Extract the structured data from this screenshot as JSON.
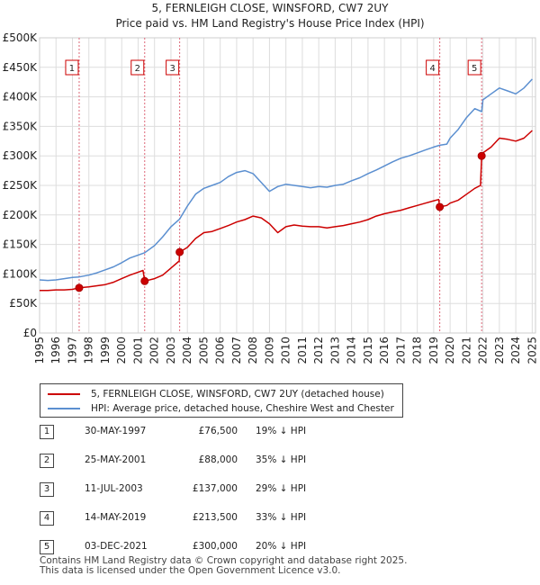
{
  "title_line1": "5, FERNLEIGH CLOSE, WINSFORD, CW7 2UY",
  "title_line2": "Price paid vs. HM Land Registry's House Price Index (HPI)",
  "legend": [
    {
      "label": "5, FERNLEIGH CLOSE, WINSFORD, CW7 2UY (detached house)",
      "color": "#cc0000"
    },
    {
      "label": "HPI: Average price, detached house, Cheshire West and Chester",
      "color": "#5b8fd0"
    }
  ],
  "sales": [
    {
      "num": "1",
      "date": "30-MAY-1997",
      "price": "£76,500",
      "pct": "19% ↓ HPI"
    },
    {
      "num": "2",
      "date": "25-MAY-2001",
      "price": "£88,000",
      "pct": "35% ↓ HPI"
    },
    {
      "num": "3",
      "date": "11-JUL-2003",
      "price": "£137,000",
      "pct": "29% ↓ HPI"
    },
    {
      "num": "4",
      "date": "14-MAY-2019",
      "price": "£213,500",
      "pct": "33% ↓ HPI"
    },
    {
      "num": "5",
      "date": "03-DEC-2021",
      "price": "£300,000",
      "pct": "20% ↓ HPI"
    }
  ],
  "footer_line1": "Contains HM Land Registry data © Crown copyright and database right 2025.",
  "footer_line2": "This data is licensed under the Open Government Licence v3.0.",
  "chart_data": {
    "type": "line",
    "title": "5, FERNLEIGH CLOSE, WINSFORD, CW7 2UY",
    "subtitle": "Price paid vs. HM Land Registry's House Price Index (HPI)",
    "xlabel": "",
    "ylabel": "",
    "xlim": [
      1995,
      2025.2
    ],
    "ylim": [
      0,
      500000
    ],
    "y_ticks": [
      0,
      50000,
      100000,
      150000,
      200000,
      250000,
      300000,
      350000,
      400000,
      450000,
      500000
    ],
    "y_tick_labels": [
      "£0",
      "£50K",
      "£100K",
      "£150K",
      "£200K",
      "£250K",
      "£300K",
      "£350K",
      "£400K",
      "£450K",
      "£500K"
    ],
    "x_ticks": [
      1995,
      1996,
      1997,
      1998,
      1999,
      2000,
      2001,
      2002,
      2003,
      2004,
      2005,
      2006,
      2007,
      2008,
      2009,
      2010,
      2011,
      2012,
      2013,
      2014,
      2015,
      2016,
      2017,
      2018,
      2019,
      2020,
      2021,
      2022,
      2023,
      2024,
      2025
    ],
    "grid": true,
    "sale_markers": [
      {
        "label": "1",
        "x": 1997.41,
        "y": 76500
      },
      {
        "label": "2",
        "x": 2001.4,
        "y": 88000
      },
      {
        "label": "3",
        "x": 2003.53,
        "y": 137000
      },
      {
        "label": "4",
        "x": 2019.37,
        "y": 213500
      },
      {
        "label": "5",
        "x": 2021.92,
        "y": 300000
      }
    ],
    "series": [
      {
        "name": "HPI: Average price, detached house, Cheshire West and Chester",
        "color": "#5b8fd0",
        "x": [
          1995,
          1995.5,
          1996,
          1996.5,
          1997,
          1997.41,
          1998,
          1998.5,
          1999,
          1999.5,
          2000,
          2000.5,
          2001,
          2001.4,
          2002,
          2002.5,
          2003,
          2003.53,
          2004,
          2004.5,
          2005,
          2005.5,
          2006,
          2006.5,
          2007,
          2007.5,
          2008,
          2008.5,
          2009,
          2009.5,
          2010,
          2010.5,
          2011,
          2011.5,
          2012,
          2012.5,
          2013,
          2013.5,
          2014,
          2014.5,
          2015,
          2015.5,
          2016,
          2016.5,
          2017,
          2017.5,
          2018,
          2018.5,
          2019,
          2019.37,
          2019.8,
          2020,
          2020.5,
          2021,
          2021.5,
          2021.92,
          2022,
          2022.5,
          2023,
          2023.5,
          2024,
          2024.5,
          2025
        ],
        "values": [
          90000,
          89000,
          90000,
          92000,
          94000,
          95000,
          98000,
          102000,
          107000,
          112000,
          119000,
          127000,
          132000,
          136000,
          148000,
          163000,
          180000,
          193000,
          215000,
          235000,
          245000,
          250000,
          255000,
          265000,
          272000,
          275000,
          270000,
          255000,
          240000,
          248000,
          252000,
          250000,
          248000,
          246000,
          248000,
          247000,
          250000,
          252000,
          258000,
          263000,
          270000,
          276000,
          283000,
          290000,
          296000,
          300000,
          305000,
          310000,
          315000,
          318000,
          320000,
          330000,
          345000,
          365000,
          380000,
          375000,
          395000,
          405000,
          415000,
          410000,
          405000,
          415000,
          430000
        ]
      },
      {
        "name": "5, FERNLEIGH CLOSE, WINSFORD, CW7 2UY (detached house)",
        "color": "#cc0000",
        "x": [
          1995,
          1995.5,
          1996,
          1996.5,
          1997,
          1997.41,
          1998,
          1998.5,
          1999,
          1999.5,
          2000,
          2000.5,
          2001,
          2001.3,
          2001.4,
          2002,
          2002.5,
          2003,
          2003.5,
          2003.53,
          2004,
          2004.5,
          2005,
          2005.5,
          2006,
          2006.5,
          2007,
          2007.5,
          2008,
          2008.5,
          2009,
          2009.5,
          2010,
          2010.5,
          2011,
          2011.5,
          2012,
          2012.5,
          2013,
          2013.5,
          2014,
          2014.5,
          2015,
          2015.5,
          2016,
          2016.5,
          2017,
          2017.5,
          2018,
          2018.5,
          2019,
          2019.3,
          2019.37,
          2019.8,
          2020,
          2020.5,
          2021,
          2021.5,
          2021.85,
          2021.92,
          2022,
          2022.5,
          2023,
          2023.5,
          2024,
          2024.5,
          2025
        ],
        "values": [
          72000,
          72000,
          73000,
          73000,
          74000,
          76500,
          78000,
          80000,
          82000,
          86000,
          92000,
          98000,
          103000,
          106000,
          88000,
          92000,
          98000,
          110000,
          122000,
          137000,
          145000,
          160000,
          170000,
          172000,
          177000,
          182000,
          188000,
          192000,
          198000,
          195000,
          185000,
          170000,
          180000,
          183000,
          181000,
          180000,
          180000,
          178000,
          180000,
          182000,
          185000,
          188000,
          192000,
          198000,
          202000,
          205000,
          208000,
          212000,
          216000,
          220000,
          224000,
          226000,
          213500,
          216000,
          220000,
          225000,
          235000,
          245000,
          250000,
          300000,
          305000,
          315000,
          330000,
          328000,
          325000,
          330000,
          343000
        ]
      }
    ]
  }
}
